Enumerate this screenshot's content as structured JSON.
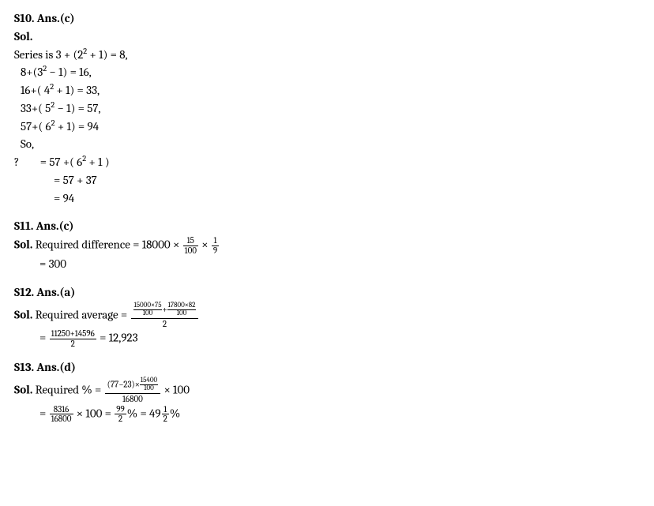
{
  "s10": {
    "header": "S10. Ans.(c)",
    "sol": "Sol.",
    "l1a": "Series is 3 + (2",
    "l1b": " + 1) = 8,",
    "l2a": "8+(3",
    "l2b": " − 1) = 16,",
    "l3a": "16+( 4",
    "l3b": " + 1) = 33,",
    "l4a": "33+( 5",
    "l4b": " − 1) = 57,",
    "l5a": "57+( 6",
    "l5b": " + 1) = 94",
    "so": "So,",
    "q1a": "?        = 57 +( 6",
    "q1b": " + 1 )",
    "q2": "= 57 + 37",
    "q3": "= 94",
    "sup": "2"
  },
  "s11": {
    "header": "S11. Ans.(c)",
    "sol": "Sol.",
    "text1": " Required difference = 18000 × ",
    "f1n": "15",
    "f1d": "100",
    "times": " × ",
    "f2n": "1",
    "f2d": "9",
    "r": "= 300"
  },
  "s12": {
    "header": "S12. Ans.(a)",
    "sol": "Sol.",
    "text1": " Required average = ",
    "tf1n": "15000×75",
    "tf1d": "100",
    "plus": "+",
    "tf2n": "17800×82",
    "tf2d": "100",
    "outerD": "2",
    "eq2": "= ",
    "f3n": "11250+14596",
    "f3d": "2",
    "result": " = 12,923"
  },
  "s13": {
    "header": "S13. Ans.(d)",
    "sol": "Sol.",
    "text1": " Required % = ",
    "nprefix": "(77−23)×",
    "tf1n": "15400",
    "tf1d": "100",
    "outerD": "16800",
    "times100": " × 100",
    "eq2": "= ",
    "f2n": "8316",
    "f2d": "16800",
    "mid": " × 100 = ",
    "f3n": "99",
    "f3d": "2",
    "pcteq": "% = 49",
    "f4n": "1",
    "f4d": "2",
    "pct": "%"
  }
}
